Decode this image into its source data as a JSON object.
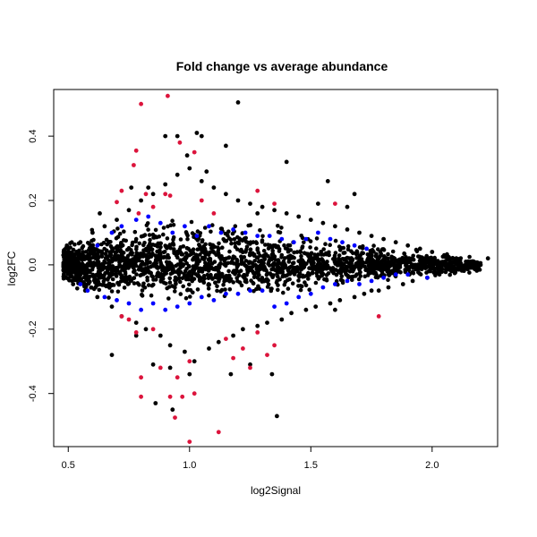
{
  "chart_data": {
    "type": "scatter",
    "title": "Fold change vs average abundance",
    "xlabel": "log2Signal",
    "ylabel": "log2FC",
    "xlim": [
      0.44,
      2.27
    ],
    "ylim": [
      -0.565,
      0.545
    ],
    "x_ticks": [
      0.5,
      1.0,
      1.5,
      2.0
    ],
    "x_tick_labels": [
      "0.5",
      "1.0",
      "1.5",
      "2.0"
    ],
    "y_ticks": [
      -0.4,
      -0.2,
      0.0,
      0.2,
      0.4
    ],
    "y_tick_labels": [
      "-0.4",
      "-0.2",
      "0.0",
      "0.2",
      "0.4"
    ],
    "grid": false,
    "colors": {
      "all": "#000000",
      "blue": "#0000ff",
      "red": "#dc143c"
    },
    "series": [
      {
        "color": "#000000",
        "points": [
          [
            0.48,
            0.03
          ],
          [
            0.49,
            -0.04
          ],
          [
            0.5,
            0.05
          ],
          [
            0.52,
            -0.06
          ],
          [
            0.55,
            0.07
          ],
          [
            0.57,
            -0.08
          ],
          [
            0.6,
            0.1
          ],
          [
            0.62,
            -0.1
          ],
          [
            0.65,
            0.12
          ],
          [
            0.68,
            -0.13
          ],
          [
            0.7,
            0.14
          ],
          [
            0.72,
            -0.16
          ],
          [
            0.75,
            0.17
          ],
          [
            0.78,
            -0.18
          ],
          [
            0.8,
            0.2
          ],
          [
            0.82,
            -0.2
          ],
          [
            0.85,
            0.22
          ],
          [
            0.88,
            -0.22
          ],
          [
            0.9,
            0.25
          ],
          [
            0.92,
            -0.25
          ],
          [
            0.95,
            0.28
          ],
          [
            0.98,
            -0.27
          ],
          [
            1.0,
            0.3
          ],
          [
            1.02,
            -0.3
          ],
          [
            1.05,
            0.26
          ],
          [
            1.08,
            -0.26
          ],
          [
            1.1,
            0.24
          ],
          [
            1.12,
            -0.24
          ],
          [
            1.15,
            0.22
          ],
          [
            1.18,
            -0.22
          ],
          [
            1.2,
            0.2
          ],
          [
            1.22,
            -0.2
          ],
          [
            1.25,
            0.19
          ],
          [
            1.28,
            -0.19
          ],
          [
            1.3,
            0.18
          ],
          [
            1.32,
            -0.18
          ],
          [
            1.35,
            0.17
          ],
          [
            1.38,
            -0.17
          ],
          [
            1.4,
            0.16
          ],
          [
            1.42,
            -0.15
          ],
          [
            1.45,
            0.15
          ],
          [
            1.48,
            -0.14
          ],
          [
            1.5,
            0.14
          ],
          [
            1.52,
            -0.13
          ],
          [
            1.55,
            0.13
          ],
          [
            1.58,
            -0.12
          ],
          [
            1.6,
            0.12
          ],
          [
            1.62,
            -0.11
          ],
          [
            1.65,
            0.11
          ],
          [
            1.68,
            -0.1
          ],
          [
            1.7,
            0.1
          ],
          [
            1.72,
            -0.09
          ],
          [
            1.75,
            0.09
          ],
          [
            1.78,
            -0.08
          ],
          [
            1.8,
            0.08
          ],
          [
            1.82,
            -0.07
          ],
          [
            1.85,
            0.07
          ],
          [
            1.88,
            -0.06
          ],
          [
            1.9,
            0.06
          ],
          [
            1.92,
            -0.05
          ],
          [
            1.95,
            0.05
          ],
          [
            1.98,
            -0.04
          ],
          [
            2.0,
            0.04
          ],
          [
            2.03,
            -0.03
          ],
          [
            2.05,
            0.03
          ],
          [
            2.08,
            -0.02
          ],
          [
            2.1,
            0.02
          ],
          [
            2.13,
            -0.01
          ],
          [
            2.16,
            0.01
          ],
          [
            2.2,
            0.0
          ],
          [
            2.23,
            0.02
          ],
          [
            0.63,
            0.16
          ],
          [
            0.68,
            -0.28
          ],
          [
            0.76,
            0.24
          ],
          [
            0.83,
            0.24
          ],
          [
            0.86,
            -0.43
          ],
          [
            0.9,
            0.4
          ],
          [
            0.93,
            -0.45
          ],
          [
            0.95,
            0.4
          ],
          [
            0.99,
            0.34
          ],
          [
            1.03,
            0.41
          ],
          [
            1.05,
            0.4
          ],
          [
            1.07,
            0.29
          ],
          [
            1.15,
            0.37
          ],
          [
            1.2,
            0.505
          ],
          [
            1.17,
            -0.34
          ],
          [
            1.28,
            0.16
          ],
          [
            1.34,
            -0.34
          ],
          [
            1.36,
            -0.47
          ],
          [
            1.4,
            0.32
          ],
          [
            1.53,
            0.19
          ],
          [
            1.57,
            0.26
          ],
          [
            1.6,
            -0.14
          ],
          [
            1.65,
            0.18
          ],
          [
            1.68,
            0.22
          ],
          [
            1.75,
            -0.08
          ],
          [
            0.78,
            -0.22
          ],
          [
            0.85,
            -0.31
          ],
          [
            0.92,
            -0.32
          ],
          [
            1.0,
            -0.34
          ],
          [
            1.25,
            -0.31
          ]
        ]
      },
      {
        "color": "#0000ff",
        "points": [
          [
            0.55,
            -0.06
          ],
          [
            0.58,
            -0.08
          ],
          [
            0.62,
            0.06
          ],
          [
            0.65,
            -0.1
          ],
          [
            0.68,
            0.1
          ],
          [
            0.7,
            -0.11
          ],
          [
            0.72,
            0.12
          ],
          [
            0.75,
            -0.12
          ],
          [
            0.78,
            0.14
          ],
          [
            0.8,
            -0.14
          ],
          [
            0.83,
            0.15
          ],
          [
            0.85,
            -0.12
          ],
          [
            0.88,
            0.13
          ],
          [
            0.9,
            -0.14
          ],
          [
            0.93,
            0.1
          ],
          [
            0.95,
            -0.13
          ],
          [
            0.98,
            0.12
          ],
          [
            1.0,
            -0.12
          ],
          [
            1.03,
            0.09
          ],
          [
            1.05,
            -0.1
          ],
          [
            1.08,
            0.12
          ],
          [
            1.1,
            -0.11
          ],
          [
            1.13,
            0.1
          ],
          [
            1.15,
            -0.09
          ],
          [
            1.18,
            0.11
          ],
          [
            1.2,
            -0.09
          ],
          [
            1.23,
            0.1
          ],
          [
            1.25,
            -0.08
          ],
          [
            1.28,
            0.09
          ],
          [
            1.3,
            -0.08
          ],
          [
            1.33,
            0.09
          ],
          [
            1.35,
            -0.13
          ],
          [
            1.38,
            0.08
          ],
          [
            1.4,
            -0.12
          ],
          [
            1.43,
            0.07
          ],
          [
            1.45,
            -0.1
          ],
          [
            1.48,
            0.08
          ],
          [
            1.5,
            -0.09
          ],
          [
            1.53,
            0.1
          ],
          [
            1.55,
            -0.07
          ],
          [
            1.58,
            0.08
          ],
          [
            1.6,
            -0.06
          ],
          [
            1.63,
            0.07
          ],
          [
            1.65,
            -0.05
          ],
          [
            1.68,
            0.06
          ],
          [
            1.7,
            -0.06
          ],
          [
            1.73,
            0.05
          ],
          [
            1.75,
            -0.05
          ],
          [
            1.8,
            -0.04
          ],
          [
            1.85,
            -0.03
          ],
          [
            1.9,
            -0.03
          ],
          [
            1.98,
            -0.04
          ]
        ]
      },
      {
        "color": "#dc143c",
        "points": [
          [
            0.8,
            0.5
          ],
          [
            0.91,
            0.525
          ],
          [
            0.78,
            0.355
          ],
          [
            0.77,
            0.31
          ],
          [
            0.72,
            0.23
          ],
          [
            0.7,
            0.195
          ],
          [
            0.79,
            0.16
          ],
          [
            0.82,
            0.22
          ],
          [
            0.85,
            0.18
          ],
          [
            0.9,
            0.22
          ],
          [
            0.92,
            0.215
          ],
          [
            0.96,
            0.38
          ],
          [
            1.02,
            0.35
          ],
          [
            1.05,
            0.2
          ],
          [
            1.1,
            0.16
          ],
          [
            1.28,
            0.23
          ],
          [
            1.35,
            0.19
          ],
          [
            1.6,
            0.19
          ],
          [
            0.72,
            -0.16
          ],
          [
            0.75,
            -0.17
          ],
          [
            0.78,
            -0.21
          ],
          [
            0.8,
            -0.41
          ],
          [
            0.8,
            -0.35
          ],
          [
            0.85,
            -0.2
          ],
          [
            0.88,
            -0.32
          ],
          [
            0.92,
            -0.41
          ],
          [
            0.94,
            -0.475
          ],
          [
            0.95,
            -0.35
          ],
          [
            0.97,
            -0.41
          ],
          [
            1.0,
            -0.3
          ],
          [
            1.0,
            -0.55
          ],
          [
            1.02,
            -0.4
          ],
          [
            1.12,
            -0.52
          ],
          [
            1.15,
            -0.23
          ],
          [
            1.18,
            -0.29
          ],
          [
            1.22,
            -0.26
          ],
          [
            1.25,
            -0.32
          ],
          [
            1.28,
            -0.21
          ],
          [
            1.32,
            -0.28
          ],
          [
            1.35,
            -0.25
          ],
          [
            1.78,
            -0.16
          ]
        ]
      }
    ],
    "dense_band": [
      [
        0.48,
        0.06,
        0.05
      ],
      [
        0.6,
        0.11,
        0.1
      ],
      [
        0.8,
        0.13,
        0.11
      ],
      [
        1.0,
        0.14,
        0.11
      ],
      [
        1.2,
        0.14,
        0.1
      ],
      [
        1.4,
        0.11,
        0.09
      ],
      [
        1.6,
        0.08,
        0.07
      ],
      [
        1.8,
        0.06,
        0.05
      ],
      [
        2.0,
        0.04,
        0.035
      ],
      [
        2.2,
        0.025,
        0.02
      ]
    ]
  }
}
